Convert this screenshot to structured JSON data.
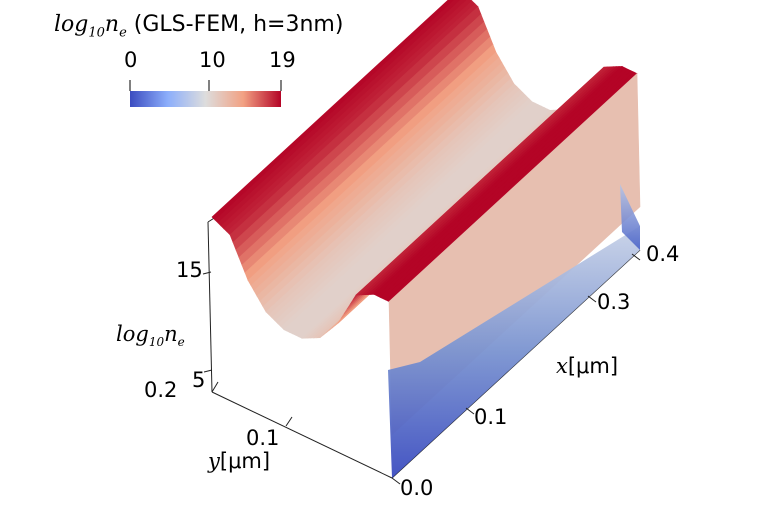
{
  "title": {
    "math_label": "log",
    "math_sub": "10",
    "math_var": "n",
    "math_var_sub": "e",
    "text": " (GLS-FEM, h=3nm)"
  },
  "colorbar": {
    "tick_labels": [
      "0",
      "10",
      "19"
    ],
    "range": [
      0,
      19
    ],
    "colormap": "cool-to-warm",
    "low_color": "#3b4cc0",
    "mid_color": "#dddddd",
    "high_color": "#b40426"
  },
  "chart_data": {
    "type": "surface",
    "title": "log10 n_e (GLS-FEM, h=3nm)",
    "x_axis": {
      "label_var": "x",
      "label_unit": "[μm]",
      "ticks": [
        "0.0",
        "0.1",
        "0.3",
        "0.4"
      ],
      "range": [
        0.0,
        0.4
      ]
    },
    "y_axis": {
      "label_var": "y",
      "label_unit": "[μm]",
      "ticks": [
        "0.1",
        "0.2"
      ],
      "range": [
        0.0,
        0.2
      ]
    },
    "z_axis": {
      "label_log": "log",
      "label_sub": "10",
      "label_var": "n",
      "label_var_sub": "e",
      "ticks": [
        "5",
        "15"
      ],
      "range": [
        0,
        19
      ]
    },
    "profile_along_y": {
      "y": [
        0.0,
        0.02,
        0.04,
        0.06,
        0.08,
        0.1,
        0.12,
        0.14,
        0.16,
        0.18,
        0.2
      ],
      "z": [
        19,
        19,
        18,
        14,
        11.5,
        10.5,
        10.5,
        11.5,
        14,
        18,
        19
      ]
    }
  }
}
